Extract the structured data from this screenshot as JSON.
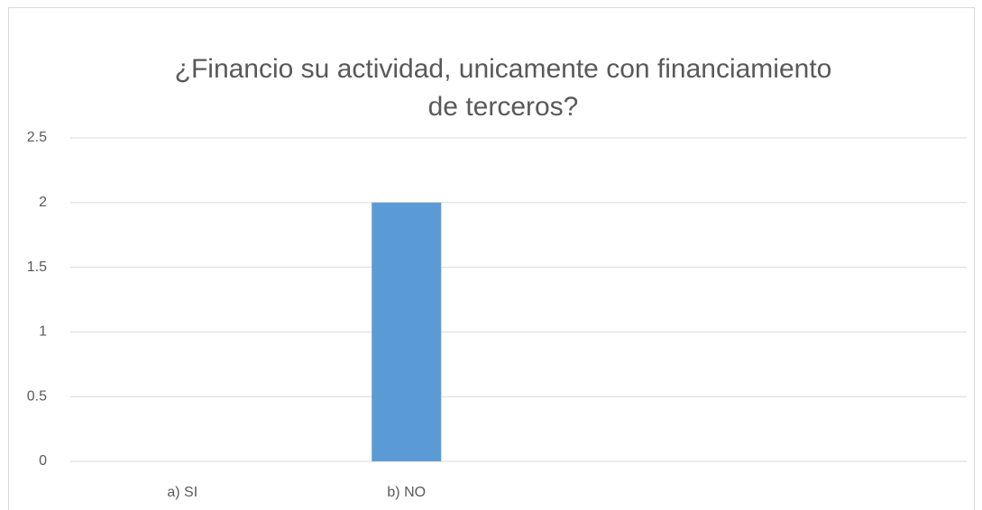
{
  "chart_data": {
    "type": "bar",
    "title": [
      "¿Financio su actividad, unicamente con financiamiento",
      "de terceros?"
    ],
    "categories": [
      "a) SI",
      "b) NO",
      null,
      null
    ],
    "values": [
      0,
      2,
      null,
      null
    ],
    "color": "#5b9bd5",
    "ylim": [
      0,
      2.5
    ],
    "yticks": [
      0,
      0.5,
      1,
      1.5,
      2,
      2.5
    ],
    "grid": true
  }
}
